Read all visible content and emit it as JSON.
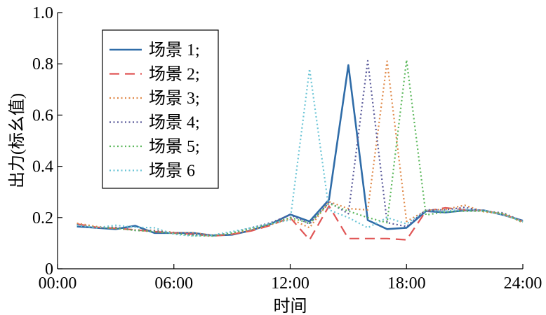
{
  "chart_data": {
    "type": "line",
    "xlabel": "时间",
    "ylabel": "出力(标幺值)",
    "x_range": [
      0,
      24
    ],
    "ylim": [
      0,
      1.0
    ],
    "x_ticks": [
      {
        "value": 0,
        "label": "00:00"
      },
      {
        "value": 6,
        "label": "06:00"
      },
      {
        "value": 12,
        "label": "12:00"
      },
      {
        "value": 18,
        "label": "18:00"
      },
      {
        "value": 24,
        "label": "24:00"
      }
    ],
    "y_ticks": [
      {
        "value": 0,
        "label": "0"
      },
      {
        "value": 0.2,
        "label": "0.2"
      },
      {
        "value": 0.4,
        "label": "0.4"
      },
      {
        "value": 0.6,
        "label": "0.6"
      },
      {
        "value": 0.8,
        "label": "0.8"
      },
      {
        "value": 1.0,
        "label": "1.0"
      }
    ],
    "grid": false,
    "legend_position": "top-left",
    "x": [
      1,
      2,
      3,
      4,
      5,
      6,
      7,
      8,
      9,
      10,
      11,
      12,
      13,
      14,
      15,
      16,
      17,
      18,
      19,
      20,
      21,
      22,
      23,
      24
    ],
    "series": [
      {
        "name": "场景 1;",
        "color": "#2f6ca8",
        "dash": "solid",
        "values": [
          0.165,
          0.16,
          0.155,
          0.168,
          0.14,
          0.14,
          0.14,
          0.13,
          0.133,
          0.15,
          0.175,
          0.212,
          0.185,
          0.27,
          0.795,
          0.19,
          0.155,
          0.16,
          0.225,
          0.22,
          0.228,
          0.228,
          0.21,
          0.188
        ]
      },
      {
        "name": "场景 2;",
        "color": "#e05555",
        "dash": "dashed",
        "values": [
          0.175,
          0.162,
          0.158,
          0.152,
          0.145,
          0.14,
          0.135,
          0.128,
          0.135,
          0.148,
          0.17,
          0.2,
          0.113,
          0.245,
          0.118,
          0.118,
          0.118,
          0.113,
          0.225,
          0.238,
          0.23,
          0.228,
          0.212,
          0.185
        ]
      },
      {
        "name": "场景 3;",
        "color": "#e08a4a",
        "dash": "dotted",
        "values": [
          0.178,
          0.165,
          0.16,
          0.152,
          0.15,
          0.142,
          0.14,
          0.132,
          0.137,
          0.152,
          0.172,
          0.195,
          0.16,
          0.262,
          0.235,
          0.23,
          0.81,
          0.185,
          0.228,
          0.232,
          0.248,
          0.222,
          0.215,
          0.18
        ]
      },
      {
        "name": "场景 4;",
        "color": "#5a5a9a",
        "dash": "dotted",
        "values": [
          0.172,
          0.16,
          0.162,
          0.15,
          0.148,
          0.14,
          0.135,
          0.13,
          0.14,
          0.16,
          0.18,
          0.21,
          0.175,
          0.26,
          0.215,
          0.812,
          0.18,
          0.165,
          0.23,
          0.23,
          0.24,
          0.225,
          0.218,
          0.185
        ]
      },
      {
        "name": "场景 5;",
        "color": "#5cb85c",
        "dash": "dotted",
        "values": [
          0.17,
          0.162,
          0.158,
          0.15,
          0.145,
          0.138,
          0.13,
          0.128,
          0.14,
          0.158,
          0.175,
          0.2,
          0.178,
          0.255,
          0.225,
          0.2,
          0.18,
          0.815,
          0.21,
          0.222,
          0.225,
          0.225,
          0.215,
          0.182
        ]
      },
      {
        "name": "场景 6",
        "color": "#6cc5d6",
        "dash": "dotted",
        "values": [
          0.17,
          0.16,
          0.17,
          0.162,
          0.16,
          0.135,
          0.128,
          0.132,
          0.145,
          0.16,
          0.178,
          0.19,
          0.78,
          0.23,
          0.2,
          0.16,
          0.2,
          0.175,
          0.228,
          0.225,
          0.232,
          0.228,
          0.21,
          0.185
        ]
      }
    ]
  }
}
